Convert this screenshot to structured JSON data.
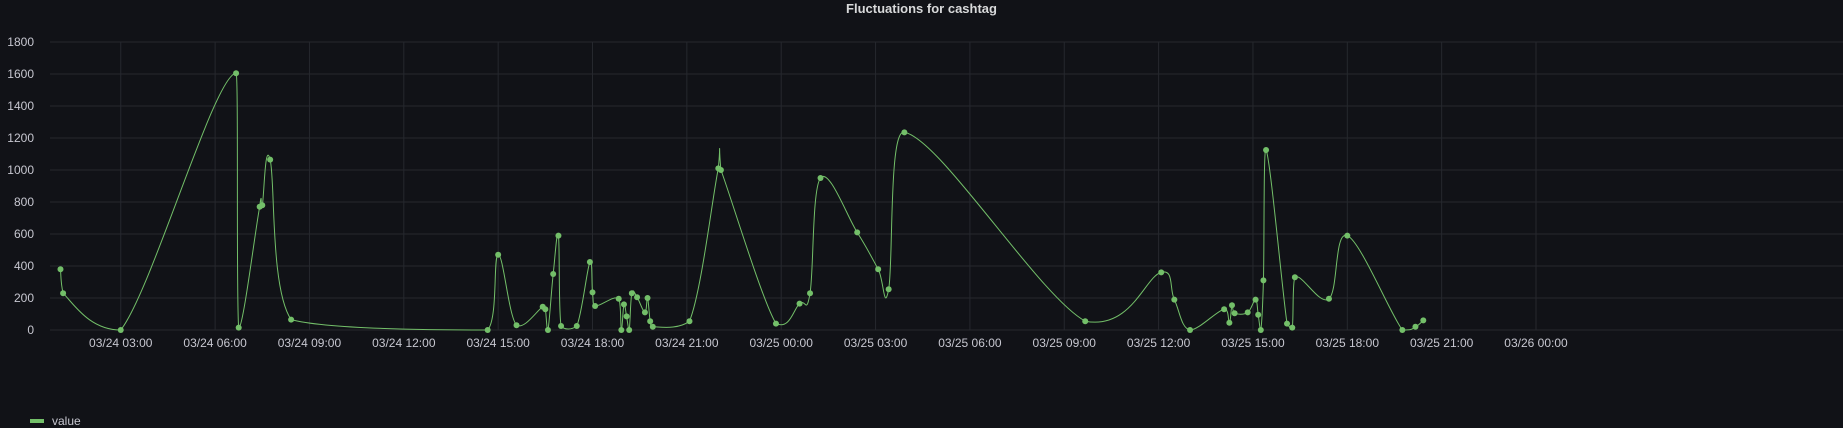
{
  "chart_data": {
    "type": "line",
    "title": "Fluctuations for cashtag",
    "xlabel": "",
    "ylabel": "",
    "ylim": [
      0,
      1800
    ],
    "yticks": [
      0,
      200,
      400,
      600,
      800,
      1000,
      1200,
      1400,
      1600,
      1800
    ],
    "xlim": [
      "03/24 00:45",
      "03/26 00:00"
    ],
    "xticks": [
      "03/24 03:00",
      "03/24 06:00",
      "03/24 09:00",
      "03/24 12:00",
      "03/24 15:00",
      "03/24 18:00",
      "03/24 21:00",
      "03/25 00:00",
      "03/25 03:00",
      "03/25 06:00",
      "03/25 09:00",
      "03/25 12:00",
      "03/25 15:00",
      "03/25 18:00",
      "03/25 21:00",
      "03/26 00:00"
    ],
    "grid": true,
    "legend": "bottom-left",
    "series_color": "#73bf69",
    "series": [
      {
        "name": "value",
        "points": [
          [
            "03/24 01:05",
            380
          ],
          [
            "03/24 01:10",
            230
          ],
          [
            "03/24 03:00",
            0
          ],
          [
            "03/24 06:40",
            1605
          ],
          [
            "03/24 06:45",
            15
          ],
          [
            "03/24 07:25",
            770
          ],
          [
            "03/24 07:30",
            780
          ],
          [
            "03/24 07:45",
            1065
          ],
          [
            "03/24 08:25",
            65
          ],
          [
            "03/24 14:40",
            0
          ],
          [
            "03/24 15:00",
            470
          ],
          [
            "03/24 15:35",
            30
          ],
          [
            "03/24 16:25",
            145
          ],
          [
            "03/24 16:30",
            130
          ],
          [
            "03/24 16:35",
            0
          ],
          [
            "03/24 16:45",
            350
          ],
          [
            "03/24 16:55",
            590
          ],
          [
            "03/24 17:00",
            25
          ],
          [
            "03/24 17:30",
            25
          ],
          [
            "03/24 17:55",
            425
          ],
          [
            "03/24 18:00",
            235
          ],
          [
            "03/24 18:05",
            150
          ],
          [
            "03/24 18:50",
            195
          ],
          [
            "03/24 18:55",
            0
          ],
          [
            "03/24 19:00",
            160
          ],
          [
            "03/24 19:05",
            85
          ],
          [
            "03/24 19:10",
            0
          ],
          [
            "03/24 19:15",
            230
          ],
          [
            "03/24 19:25",
            205
          ],
          [
            "03/24 19:40",
            110
          ],
          [
            "03/24 19:45",
            200
          ],
          [
            "03/24 19:50",
            55
          ],
          [
            "03/24 19:55",
            20
          ],
          [
            "03/24 21:05",
            55
          ],
          [
            "03/24 22:00",
            1010
          ],
          [
            "03/24 22:05",
            1000
          ],
          [
            "03/24 23:50",
            40
          ],
          [
            "03/25 00:35",
            165
          ],
          [
            "03/25 00:55",
            230
          ],
          [
            "03/25 01:15",
            950
          ],
          [
            "03/25 02:25",
            610
          ],
          [
            "03/25 03:05",
            380
          ],
          [
            "03/25 03:25",
            255
          ],
          [
            "03/25 03:55",
            1235
          ],
          [
            "03/25 09:40",
            55
          ],
          [
            "03/25 12:05",
            360
          ],
          [
            "03/25 12:30",
            190
          ],
          [
            "03/25 13:00",
            0
          ],
          [
            "03/25 14:05",
            130
          ],
          [
            "03/25 14:15",
            45
          ],
          [
            "03/25 14:20",
            155
          ],
          [
            "03/25 14:25",
            105
          ],
          [
            "03/25 14:50",
            110
          ],
          [
            "03/25 15:05",
            190
          ],
          [
            "03/25 15:10",
            95
          ],
          [
            "03/25 15:15",
            0
          ],
          [
            "03/25 15:20",
            310
          ],
          [
            "03/25 15:25",
            1125
          ],
          [
            "03/25 16:05",
            40
          ],
          [
            "03/25 16:15",
            15
          ],
          [
            "03/25 16:20",
            330
          ],
          [
            "03/25 17:25",
            195
          ],
          [
            "03/25 18:00",
            590
          ],
          [
            "03/25 19:45",
            0
          ],
          [
            "03/25 20:10",
            20
          ],
          [
            "03/25 20:25",
            60
          ]
        ]
      }
    ]
  }
}
